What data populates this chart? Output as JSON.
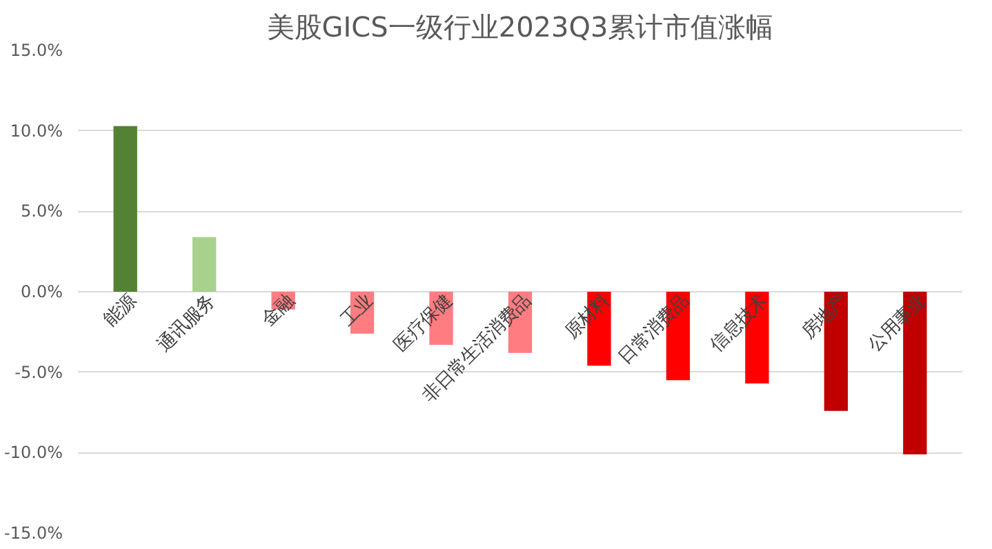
{
  "chart_data": {
    "type": "bar",
    "title": "美股GICS一级行业2023Q3累计市值涨幅",
    "categories": [
      "能源",
      "通讯服务",
      "金融",
      "工业",
      "医疗保健",
      "非日常生活消费品",
      "原材料",
      "日常消费品",
      "信息技术",
      "房地产",
      "公用事业"
    ],
    "values": [
      10.3,
      3.4,
      -1.1,
      -2.6,
      -3.3,
      -3.8,
      -4.6,
      -5.5,
      -5.7,
      -7.4,
      -10.1
    ],
    "colors": [
      "#548235",
      "#a9d18e",
      "#ff7c80",
      "#ff7c80",
      "#ff7c80",
      "#ff7c80",
      "#ff0000",
      "#ff0000",
      "#ff0000",
      "#c00000",
      "#c00000"
    ],
    "ylim": [
      -15,
      15
    ],
    "yticks": [
      {
        "value": -15,
        "label": "-15.0%"
      },
      {
        "value": -10,
        "label": "-10.0%"
      },
      {
        "value": -5,
        "label": "-5.0%"
      },
      {
        "value": 0,
        "label": "0.0%"
      },
      {
        "value": 5,
        "label": "5.0%"
      },
      {
        "value": 10,
        "label": "10.0%"
      },
      {
        "value": 15,
        "label": "15.0%"
      }
    ],
    "grid": "y"
  }
}
